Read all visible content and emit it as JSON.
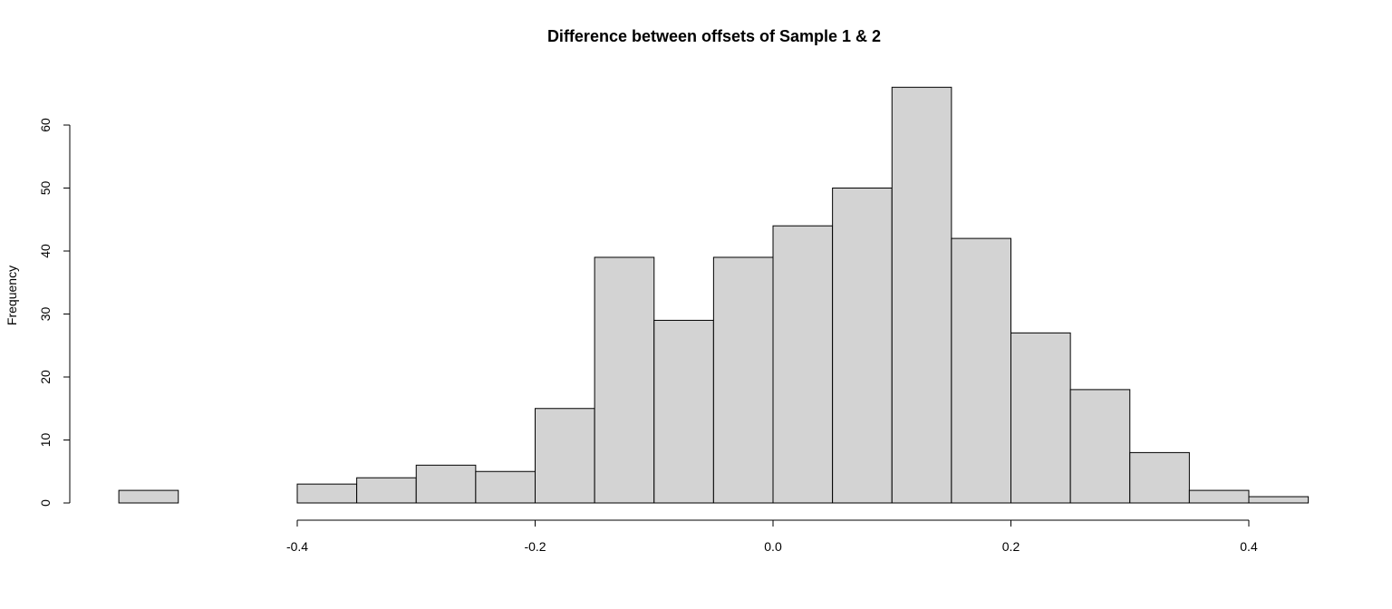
{
  "chart_data": {
    "type": "bar",
    "title": "Difference between offsets of Sample 1 & 2",
    "xlabel": "",
    "ylabel": "Frequency",
    "bins": [
      {
        "from": -0.55,
        "to": -0.5,
        "count": 2
      },
      {
        "from": -0.5,
        "to": -0.45,
        "count": 0
      },
      {
        "from": -0.45,
        "to": -0.4,
        "count": 0
      },
      {
        "from": -0.4,
        "to": -0.35,
        "count": 3
      },
      {
        "from": -0.35,
        "to": -0.3,
        "count": 4
      },
      {
        "from": -0.3,
        "to": -0.25,
        "count": 6
      },
      {
        "from": -0.25,
        "to": -0.2,
        "count": 5
      },
      {
        "from": -0.2,
        "to": -0.15,
        "count": 15
      },
      {
        "from": -0.15,
        "to": -0.1,
        "count": 39
      },
      {
        "from": -0.1,
        "to": -0.05,
        "count": 29
      },
      {
        "from": -0.05,
        "to": 0.0,
        "count": 39
      },
      {
        "from": 0.0,
        "to": 0.05,
        "count": 44
      },
      {
        "from": 0.05,
        "to": 0.1,
        "count": 50
      },
      {
        "from": 0.1,
        "to": 0.15,
        "count": 66
      },
      {
        "from": 0.15,
        "to": 0.2,
        "count": 42
      },
      {
        "from": 0.2,
        "to": 0.25,
        "count": 27
      },
      {
        "from": 0.25,
        "to": 0.3,
        "count": 18
      },
      {
        "from": 0.3,
        "to": 0.35,
        "count": 8
      },
      {
        "from": 0.35,
        "to": 0.4,
        "count": 2
      },
      {
        "from": 0.4,
        "to": 0.45,
        "count": 1
      }
    ],
    "x_ticks": [
      -0.4,
      -0.2,
      0.0,
      0.2,
      0.4
    ],
    "x_tick_labels": [
      "-0.4",
      "-0.2",
      "0.0",
      "0.2",
      "0.4"
    ],
    "y_ticks": [
      0,
      10,
      20,
      30,
      40,
      50,
      60
    ],
    "y_tick_labels": [
      "0",
      "10",
      "20",
      "30",
      "40",
      "50",
      "60"
    ],
    "xlim": [
      -0.55,
      0.45
    ],
    "ylim": [
      0,
      66
    ],
    "grid": false,
    "colors": {
      "bar_fill": "#d3d3d3",
      "bar_stroke": "#000000"
    }
  }
}
